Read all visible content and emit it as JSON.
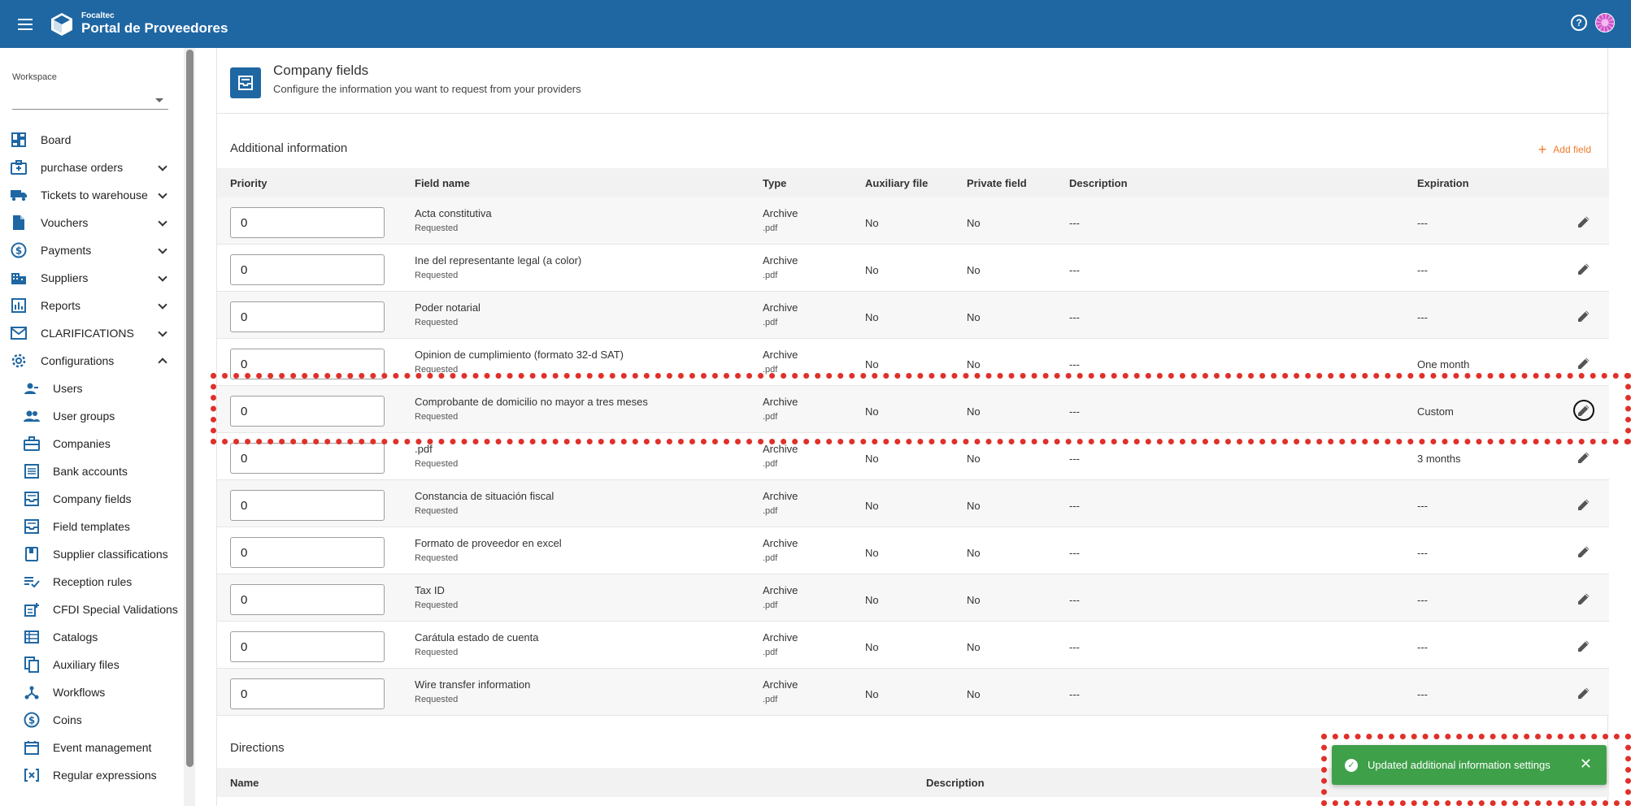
{
  "header": {
    "brand_small": "Focaltec",
    "brand_big": "Portal de Proveedores",
    "help_glyph": "?"
  },
  "workspace": {
    "label": "Workspace",
    "value": ""
  },
  "nav": [
    {
      "label": "Board",
      "icon": "dashboard-icon",
      "expandable": false
    },
    {
      "label": "purchase orders",
      "icon": "purchase-orders-icon",
      "expandable": true
    },
    {
      "label": "Tickets to warehouse",
      "icon": "truck-icon",
      "expandable": true
    },
    {
      "label": "Vouchers",
      "icon": "document-icon",
      "expandable": true
    },
    {
      "label": "Payments",
      "icon": "dollar-coin-icon",
      "expandable": true
    },
    {
      "label": "Suppliers",
      "icon": "building-icon",
      "expandable": true
    },
    {
      "label": "Reports",
      "icon": "bar-chart-icon",
      "expandable": true
    },
    {
      "label": "CLARIFICATIONS",
      "icon": "mail-icon",
      "expandable": true
    },
    {
      "label": "Configurations",
      "icon": "gear-icon",
      "expandable": true,
      "expanded": true
    }
  ],
  "subnav": [
    {
      "label": "Users",
      "icon": "user-icon"
    },
    {
      "label": "User groups",
      "icon": "group-icon"
    },
    {
      "label": "Companies",
      "icon": "briefcase-icon"
    },
    {
      "label": "Bank accounts",
      "icon": "list-icon"
    },
    {
      "label": "Company fields",
      "icon": "inbox-icon"
    },
    {
      "label": "Field templates",
      "icon": "template-icon"
    },
    {
      "label": "Supplier classifications",
      "icon": "book-icon"
    },
    {
      "label": "Reception rules",
      "icon": "rule-check-icon"
    },
    {
      "label": "CFDI Special Validations",
      "icon": "doc-plus-icon"
    },
    {
      "label": "Catalogs",
      "icon": "table-icon"
    },
    {
      "label": "Auxiliary files",
      "icon": "files-icon"
    },
    {
      "label": "Workflows",
      "icon": "workflow-icon"
    },
    {
      "label": "Coins",
      "icon": "coin-icon"
    },
    {
      "label": "Event management",
      "icon": "calendar-icon"
    },
    {
      "label": "Regular expressions",
      "icon": "regex-icon"
    }
  ],
  "page": {
    "title": "Company fields",
    "subtitle": "Configure the information you want to request from your providers"
  },
  "additional": {
    "title": "Additional information",
    "add_field": "Add field",
    "columns": {
      "priority": "Priority",
      "field_name": "Field name",
      "type": "Type",
      "auxiliary_file": "Auxiliary file",
      "private_field": "Private field",
      "description": "Description",
      "expiration": "Expiration"
    },
    "rows": [
      {
        "priority": "0",
        "name": "Acta constitutiva",
        "status": "Requested",
        "type": "Archive",
        "ext": ".pdf",
        "aux": "No",
        "private": "No",
        "description": "---",
        "expiration": "---"
      },
      {
        "priority": "0",
        "name": "Ine del representante legal (a color)",
        "status": "Requested",
        "type": "Archive",
        "ext": ".pdf",
        "aux": "No",
        "private": "No",
        "description": "---",
        "expiration": "---"
      },
      {
        "priority": "0",
        "name": "Poder notarial",
        "status": "Requested",
        "type": "Archive",
        "ext": ".pdf",
        "aux": "No",
        "private": "No",
        "description": "---",
        "expiration": "---"
      },
      {
        "priority": "0",
        "name": "Opinion de cumplimiento (formato 32-d SAT)",
        "status": "Requested",
        "type": "Archive",
        "ext": ".pdf",
        "aux": "No",
        "private": "No",
        "description": "---",
        "expiration": "One month"
      },
      {
        "priority": "0",
        "name": "Comprobante de domicilio no mayor a tres meses",
        "status": "Requested",
        "type": "Archive",
        "ext": ".pdf",
        "aux": "No",
        "private": "No",
        "description": "---",
        "expiration": "Custom"
      },
      {
        "priority": "0",
        "name": ".pdf",
        "status": "Requested",
        "type": "Archive",
        "ext": ".pdf",
        "aux": "No",
        "private": "No",
        "description": "---",
        "expiration": "3 months"
      },
      {
        "priority": "0",
        "name": "Constancia de situación fiscal",
        "status": "Requested",
        "type": "Archive",
        "ext": ".pdf",
        "aux": "No",
        "private": "No",
        "description": "---",
        "expiration": "---"
      },
      {
        "priority": "0",
        "name": "Formato de proveedor en excel",
        "status": "Requested",
        "type": "Archive",
        "ext": ".pdf",
        "aux": "No",
        "private": "No",
        "description": "---",
        "expiration": "---"
      },
      {
        "priority": "0",
        "name": "Tax ID",
        "status": "Requested",
        "type": "Archive",
        "ext": ".pdf",
        "aux": "No",
        "private": "No",
        "description": "---",
        "expiration": "---"
      },
      {
        "priority": "0",
        "name": "Carátula estado de cuenta",
        "status": "Requested",
        "type": "Archive",
        "ext": ".pdf",
        "aux": "No",
        "private": "No",
        "description": "---",
        "expiration": "---"
      },
      {
        "priority": "0",
        "name": "Wire transfer information",
        "status": "Requested",
        "type": "Archive",
        "ext": ".pdf",
        "aux": "No",
        "private": "No",
        "description": "---",
        "expiration": "---"
      }
    ]
  },
  "directions": {
    "title": "Directions",
    "columns": {
      "name": "Name",
      "description": "Description"
    }
  },
  "toast": {
    "message": "Updated additional information settings",
    "close": "✕"
  },
  "colors": {
    "primary": "#1f67a3",
    "accent": "#f27b2b",
    "success": "#3fa04a",
    "highlight": "#e0302a"
  }
}
